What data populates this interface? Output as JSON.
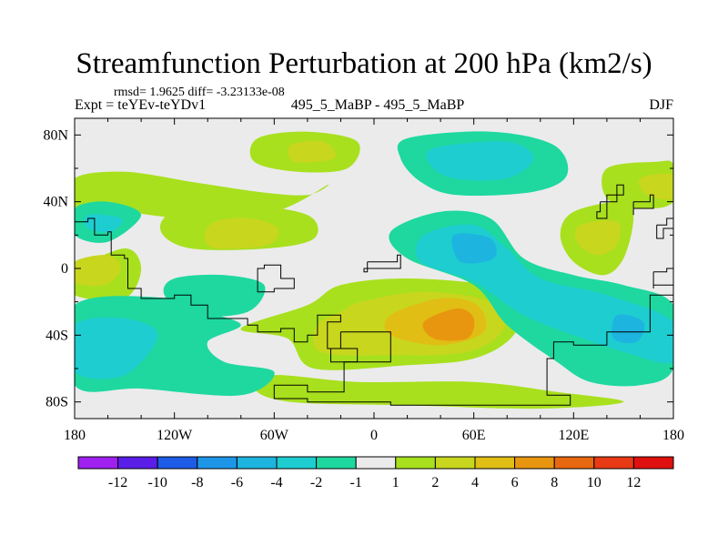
{
  "header": {
    "title": "Streamfunction Perturbation at 200 hPa (km2/s)",
    "stats": "rmsd= 1.9625 diff= -3.23133e-08",
    "expt": "Expt = teYEv-teYDv1",
    "center": "495_5_MaBP - 495_5_MaBP",
    "season": "DJF"
  },
  "chart_data": {
    "type": "heatmap",
    "title": "Streamfunction Perturbation at 200 hPa (km2/s)",
    "xlabel": "",
    "ylabel": "",
    "x_ticks": [
      {
        "value": -180,
        "label": "180"
      },
      {
        "value": -120,
        "label": "120W"
      },
      {
        "value": -60,
        "label": "60W"
      },
      {
        "value": 0,
        "label": "0"
      },
      {
        "value": 60,
        "label": "60E"
      },
      {
        "value": 120,
        "label": "120E"
      },
      {
        "value": 180,
        "label": "180"
      }
    ],
    "y_ticks": [
      {
        "value": 80,
        "label": "80N"
      },
      {
        "value": 40,
        "label": "40N"
      },
      {
        "value": 0,
        "label": "0"
      },
      {
        "value": -40,
        "label": "40S"
      },
      {
        "value": -80,
        "label": "80S"
      }
    ],
    "xlim": [
      -180,
      180
    ],
    "ylim": [
      -90,
      90
    ],
    "colorbar": {
      "labels": [
        "-12",
        "-10",
        "-8",
        "-6",
        "-4",
        "-2",
        "-1",
        "1",
        "2",
        "4",
        "6",
        "8",
        "10",
        "12"
      ],
      "colors": [
        "#a020f0",
        "#5a1ee8",
        "#1e5ce8",
        "#1e96e8",
        "#1eb4e0",
        "#1ecdd0",
        "#1ed8a0",
        "#ebebeb",
        "#a8e01e",
        "#c8d61e",
        "#e0be14",
        "#e89610",
        "#e86810",
        "#e83a14",
        "#e01010"
      ]
    },
    "regions": [
      {
        "level": 1,
        "pts": [
          [
            -180,
            54
          ],
          [
            -150,
            58
          ],
          [
            -110,
            52
          ],
          [
            -70,
            46
          ],
          [
            -40,
            44
          ],
          [
            -28,
            50
          ],
          [
            -60,
            34
          ],
          [
            -110,
            30
          ],
          [
            -150,
            34
          ],
          [
            -180,
            36
          ]
        ]
      },
      {
        "level": 1,
        "pts": [
          [
            -70,
            78
          ],
          [
            -40,
            82
          ],
          [
            -10,
            76
          ],
          [
            -16,
            60
          ],
          [
            -46,
            58
          ],
          [
            -72,
            64
          ]
        ]
      },
      {
        "level": 2,
        "pts": [
          [
            -50,
            74
          ],
          [
            -30,
            76
          ],
          [
            -24,
            66
          ],
          [
            -48,
            64
          ]
        ]
      },
      {
        "level": 1,
        "pts": [
          [
            -120,
            34
          ],
          [
            -80,
            38
          ],
          [
            -40,
            32
          ],
          [
            -36,
            18
          ],
          [
            -64,
            12
          ],
          [
            -110,
            12
          ],
          [
            -128,
            22
          ]
        ]
      },
      {
        "level": 2,
        "pts": [
          [
            -96,
            28
          ],
          [
            -74,
            30
          ],
          [
            -58,
            24
          ],
          [
            -64,
            14
          ],
          [
            -94,
            12
          ],
          [
            -102,
            18
          ]
        ]
      },
      {
        "level": 1,
        "pts": [
          [
            -180,
            -2
          ],
          [
            -150,
            12
          ],
          [
            -140,
            0
          ],
          [
            -150,
            -18
          ],
          [
            -180,
            -16
          ]
        ]
      },
      {
        "level": 2,
        "pts": [
          [
            -180,
            4
          ],
          [
            -160,
            8
          ],
          [
            -152,
            0
          ],
          [
            -162,
            -10
          ],
          [
            -180,
            -8
          ]
        ]
      },
      {
        "level": 1,
        "pts": [
          [
            -20,
            -10
          ],
          [
            20,
            -6
          ],
          [
            70,
            -10
          ],
          [
            90,
            -18
          ],
          [
            84,
            -40
          ],
          [
            60,
            -54
          ],
          [
            20,
            -58
          ],
          [
            -36,
            -60
          ],
          [
            -52,
            -42
          ],
          [
            -80,
            -36
          ],
          [
            -40,
            -22
          ]
        ]
      },
      {
        "level": 1,
        "pts": [
          [
            -60,
            -64
          ],
          [
            -10,
            -68
          ],
          [
            60,
            -68
          ],
          [
            110,
            -74
          ],
          [
            150,
            -80
          ],
          [
            100,
            -84
          ],
          [
            20,
            -82
          ],
          [
            -50,
            -80
          ],
          [
            -72,
            -72
          ]
        ]
      },
      {
        "level": 2,
        "pts": [
          [
            -8,
            -20
          ],
          [
            30,
            -14
          ],
          [
            70,
            -20
          ],
          [
            78,
            -36
          ],
          [
            56,
            -50
          ],
          [
            10,
            -52
          ],
          [
            -32,
            -50
          ],
          [
            -34,
            -34
          ],
          [
            -20,
            -26
          ]
        ]
      },
      {
        "level": 3,
        "pts": [
          [
            10,
            -28
          ],
          [
            40,
            -18
          ],
          [
            62,
            -22
          ],
          [
            66,
            -38
          ],
          [
            40,
            -46
          ],
          [
            10,
            -40
          ]
        ]
      },
      {
        "level": 4,
        "pts": [
          [
            30,
            -32
          ],
          [
            50,
            -24
          ],
          [
            60,
            -30
          ],
          [
            56,
            -42
          ],
          [
            36,
            -42
          ]
        ]
      },
      {
        "level": 1,
        "pts": [
          [
            120,
            34
          ],
          [
            150,
            40
          ],
          [
            156,
            30
          ],
          [
            150,
            6
          ],
          [
            138,
            -4
          ],
          [
            120,
            4
          ],
          [
            112,
            20
          ]
        ]
      },
      {
        "level": 2,
        "pts": [
          [
            124,
            26
          ],
          [
            146,
            28
          ],
          [
            146,
            14
          ],
          [
            134,
            8
          ],
          [
            122,
            16
          ]
        ]
      },
      {
        "level": 1,
        "pts": [
          [
            140,
            60
          ],
          [
            170,
            64
          ],
          [
            180,
            62
          ],
          [
            180,
            40
          ],
          [
            160,
            36
          ],
          [
            140,
            42
          ]
        ]
      },
      {
        "level": 2,
        "pts": [
          [
            160,
            54
          ],
          [
            180,
            56
          ],
          [
            180,
            42
          ],
          [
            164,
            44
          ]
        ]
      },
      {
        "level": -1,
        "pts": [
          [
            20,
            78
          ],
          [
            70,
            82
          ],
          [
            108,
            74
          ],
          [
            116,
            56
          ],
          [
            96,
            46
          ],
          [
            50,
            44
          ],
          [
            28,
            52
          ],
          [
            16,
            66
          ]
        ]
      },
      {
        "level": -2,
        "pts": [
          [
            36,
            72
          ],
          [
            80,
            76
          ],
          [
            96,
            66
          ],
          [
            80,
            54
          ],
          [
            48,
            54
          ],
          [
            34,
            62
          ]
        ]
      },
      {
        "level": -1,
        "pts": [
          [
            -180,
            -22
          ],
          [
            -120,
            -18
          ],
          [
            -100,
            -26
          ],
          [
            -80,
            -34
          ],
          [
            -100,
            -44
          ],
          [
            -90,
            -56
          ],
          [
            -60,
            -62
          ],
          [
            -80,
            -76
          ],
          [
            -140,
            -72
          ],
          [
            -180,
            -70
          ]
        ]
      },
      {
        "level": -2,
        "pts": [
          [
            -180,
            -34
          ],
          [
            -150,
            -30
          ],
          [
            -130,
            -40
          ],
          [
            -150,
            -64
          ],
          [
            -180,
            -62
          ]
        ]
      },
      {
        "level": -1,
        "pts": [
          [
            -120,
            -6
          ],
          [
            -90,
            -4
          ],
          [
            -66,
            -10
          ],
          [
            -76,
            -26
          ],
          [
            -110,
            -28
          ],
          [
            -126,
            -16
          ]
        ]
      },
      {
        "level": -1,
        "pts": [
          [
            -180,
            36
          ],
          [
            -160,
            40
          ],
          [
            -140,
            32
          ],
          [
            -160,
            16
          ],
          [
            -180,
            20
          ]
        ]
      },
      {
        "level": -2,
        "pts": [
          [
            -172,
            32
          ],
          [
            -152,
            30
          ],
          [
            -158,
            22
          ],
          [
            -172,
            24
          ]
        ]
      },
      {
        "level": -1,
        "pts": [
          [
            10,
            22
          ],
          [
            40,
            34
          ],
          [
            70,
            30
          ],
          [
            90,
            6
          ],
          [
            120,
            -4
          ],
          [
            150,
            -10
          ],
          [
            180,
            -22
          ],
          [
            180,
            -60
          ],
          [
            160,
            -70
          ],
          [
            130,
            -68
          ],
          [
            110,
            -56
          ],
          [
            80,
            -34
          ],
          [
            60,
            -10
          ],
          [
            20,
            6
          ]
        ]
      },
      {
        "level": -2,
        "pts": [
          [
            30,
            20
          ],
          [
            60,
            26
          ],
          [
            80,
            12
          ],
          [
            100,
            -6
          ],
          [
            140,
            -16
          ],
          [
            180,
            -32
          ],
          [
            180,
            -56
          ],
          [
            150,
            -50
          ],
          [
            120,
            -40
          ],
          [
            90,
            -28
          ],
          [
            60,
            -8
          ],
          [
            28,
            4
          ]
        ]
      },
      {
        "level": -3,
        "pts": [
          [
            48,
            20
          ],
          [
            70,
            18
          ],
          [
            72,
            6
          ],
          [
            52,
            4
          ]
        ]
      },
      {
        "level": -3,
        "pts": [
          [
            146,
            -28
          ],
          [
            162,
            -32
          ],
          [
            158,
            -44
          ],
          [
            144,
            -42
          ]
        ]
      }
    ],
    "coastlines": [
      [
        [
          -180,
          28
        ],
        [
          -172,
          30
        ],
        [
          -168,
          20
        ],
        [
          -160,
          22
        ],
        [
          -158,
          8
        ],
        [
          -150,
          6
        ],
        [
          -148,
          -12
        ],
        [
          -140,
          -18
        ],
        [
          -120,
          -16
        ],
        [
          -110,
          -22
        ],
        [
          -100,
          -30
        ],
        [
          -86,
          -30
        ],
        [
          -76,
          -34
        ],
        [
          -70,
          -38
        ],
        [
          -56,
          -36
        ],
        [
          -48,
          -44
        ],
        [
          -40,
          -40
        ],
        [
          -34,
          -28
        ],
        [
          -20,
          -32
        ],
        [
          -28,
          -48
        ],
        [
          -10,
          -56
        ],
        [
          -18,
          -74
        ],
        [
          -40,
          -70
        ],
        [
          -60,
          -74
        ],
        [
          -60,
          -78
        ],
        [
          -40,
          -80
        ],
        [
          10,
          -82
        ],
        [
          60,
          -82
        ],
        [
          118,
          -80
        ],
        [
          118,
          -76
        ],
        [
          104,
          -72
        ],
        [
          104,
          -54
        ],
        [
          108,
          -44
        ],
        [
          120,
          -46
        ],
        [
          140,
          -38
        ],
        [
          166,
          -16
        ],
        [
          180,
          -12
        ]
      ],
      [
        [
          -60,
          -12
        ],
        [
          -48,
          -6
        ],
        [
          -56,
          2
        ],
        [
          -66,
          0
        ],
        [
          -70,
          -14
        ],
        [
          -60,
          -12
        ]
      ],
      [
        [
          -20,
          -38
        ],
        [
          8,
          -38
        ],
        [
          10,
          -56
        ],
        [
          -26,
          -56
        ],
        [
          -26,
          -48
        ],
        [
          -20,
          -38
        ]
      ],
      [
        [
          -4,
          4
        ],
        [
          14,
          8
        ],
        [
          16,
          0
        ],
        [
          -6,
          -2
        ],
        [
          -4,
          4
        ]
      ],
      [
        [
          136,
          40
        ],
        [
          146,
          50
        ],
        [
          150,
          44
        ],
        [
          140,
          30
        ],
        [
          134,
          34
        ],
        [
          136,
          40
        ]
      ],
      [
        [
          156,
          40
        ],
        [
          166,
          44
        ],
        [
          168,
          36
        ],
        [
          156,
          32
        ],
        [
          156,
          40
        ]
      ],
      [
        [
          170,
          26
        ],
        [
          176,
          30
        ],
        [
          180,
          24
        ],
        [
          174,
          18
        ],
        [
          170,
          26
        ]
      ],
      [
        [
          168,
          -2
        ],
        [
          176,
          0
        ],
        [
          180,
          -10
        ],
        [
          168,
          -12
        ],
        [
          168,
          -2
        ]
      ]
    ]
  }
}
